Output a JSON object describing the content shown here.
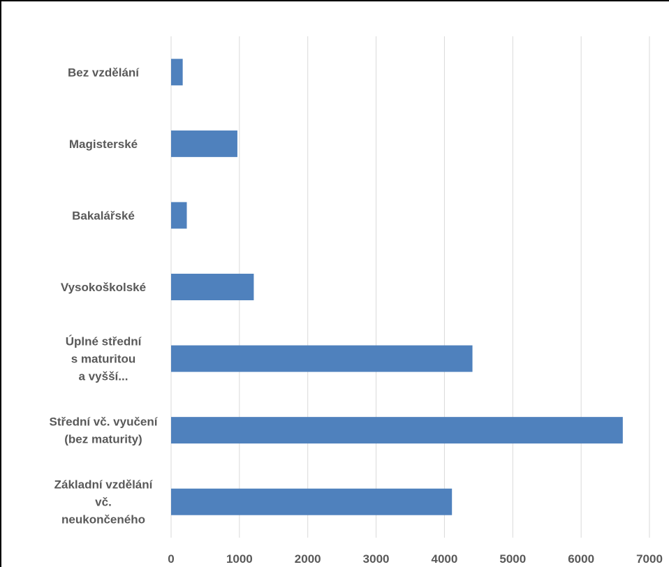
{
  "chart_data": {
    "type": "bar",
    "orientation": "horizontal",
    "categories": [
      "Bez vzdělání",
      "Magisterské",
      "Bakalářské",
      "Vysokoškolské",
      "Úplné střední s maturitou a vyšší...",
      "Střední vč. vyučení (bez maturity)",
      "Základní vzdělání vč. neukončeného"
    ],
    "category_lines": [
      [
        "Bez vzdělání"
      ],
      [
        "Magisterské"
      ],
      [
        "Bakalářské"
      ],
      [
        "Vysokoškolské"
      ],
      [
        "Úplné střední",
        "s maturitou",
        "a vyšší..."
      ],
      [
        "Střední vč. vyučení",
        "(bez maturity)"
      ],
      [
        "Základní  vzdělání",
        "vč.",
        "neukončeného"
      ]
    ],
    "values": [
      170,
      970,
      230,
      1210,
      4410,
      6610,
      4110
    ],
    "xlim": [
      0,
      7000
    ],
    "xticks": [
      "0",
      "1000",
      "2000",
      "3000",
      "4000",
      "5000",
      "6000",
      "7000"
    ],
    "grid": true,
    "bar_color": "#4F81BD",
    "grid_color": "#D9D9D9",
    "title": "",
    "xlabel": "",
    "ylabel": ""
  }
}
